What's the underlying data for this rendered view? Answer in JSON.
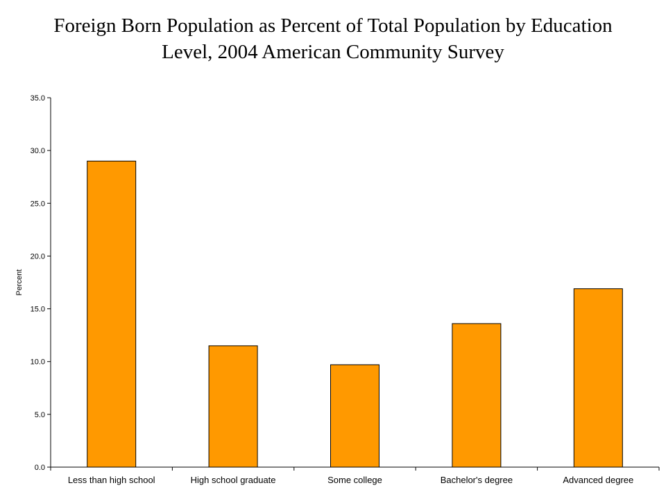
{
  "chart_data": {
    "type": "bar",
    "title_lines": [
      "Foreign Born Population as Percent of Total Population by Education",
      "Level, 2004 American Community Survey"
    ],
    "categories": [
      "Less than high school",
      "High school graduate",
      "Some college",
      "Bachelor's degree",
      "Advanced degree"
    ],
    "values": [
      29.0,
      11.5,
      9.7,
      13.6,
      16.9
    ],
    "xlabel": "",
    "ylabel": "Percent",
    "ylim": [
      0,
      35
    ],
    "yticks": [
      "0.0",
      "5.0",
      "10.0",
      "15.0",
      "20.0",
      "25.0",
      "30.0",
      "35.0"
    ],
    "ytick_values": [
      0,
      5,
      10,
      15,
      20,
      25,
      30,
      35
    ],
    "bar_color": "#FF9900",
    "grid": false,
    "legend": "none"
  }
}
